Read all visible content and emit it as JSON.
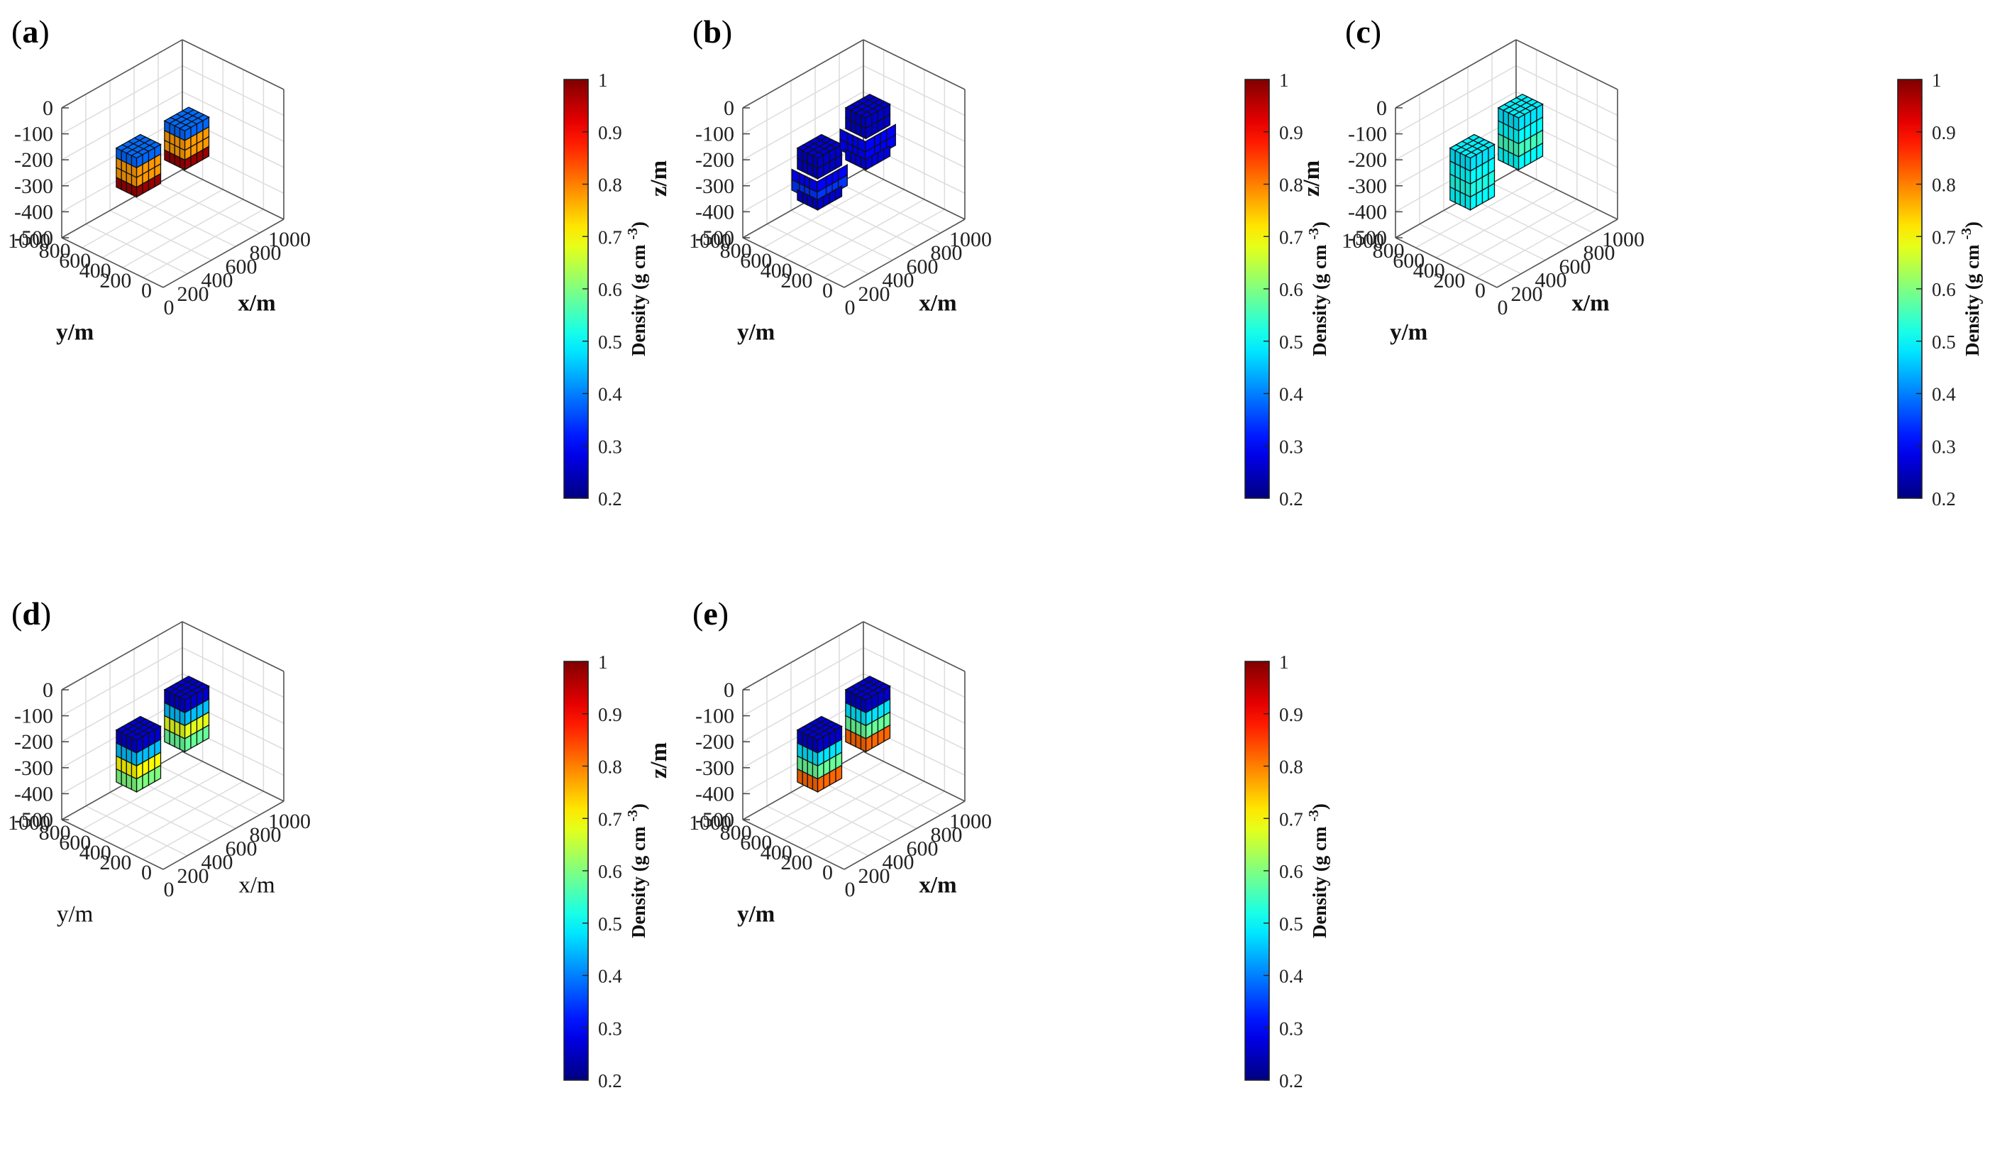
{
  "chart_data": [
    {
      "type": "3d-voxel",
      "panel_label": "a",
      "xlabel": "x/m",
      "ylabel": "y/m",
      "zlabel": "z/m",
      "bold_labels": true,
      "xlim": [
        0,
        1000
      ],
      "ylim": [
        0,
        1000
      ],
      "zlim": [
        -500,
        0
      ],
      "xticks": [
        0,
        200,
        400,
        600,
        800,
        1000
      ],
      "yticks": [
        0,
        200,
        400,
        600,
        800,
        1000
      ],
      "zticks": [
        0,
        -100,
        -200,
        -300,
        -400,
        -500
      ],
      "grid": true,
      "colorbar": {
        "label": "Density (g cm",
        "label_superscript": "-3",
        "label_suffix": ")",
        "min": 0.2,
        "max": 1,
        "ticks": [
          0.2,
          0.3,
          0.4,
          0.5,
          0.6,
          0.7,
          0.8,
          0.9,
          1
        ],
        "colormap": "jet"
      },
      "bodies": [
        {
          "x": [
            200,
            400
          ],
          "y": [
            500,
            700
          ],
          "z": [
            -300,
            -150
          ],
          "layers": [
            0.38,
            0.78,
            0.78,
            0.98
          ]
        },
        {
          "x": [
            600,
            800
          ],
          "y": [
            500,
            700
          ],
          "z": [
            -300,
            -150
          ],
          "layers": [
            0.38,
            0.78,
            0.78,
            0.98
          ]
        }
      ]
    },
    {
      "type": "3d-voxel",
      "panel_label": "b",
      "xlabel": "x/m",
      "ylabel": "y/m",
      "zlabel": "z/m",
      "bold_labels": true,
      "xlim": [
        0,
        1000
      ],
      "ylim": [
        0,
        1000
      ],
      "zlim": [
        -500,
        0
      ],
      "xticks": [
        0,
        200,
        400,
        600,
        800,
        1000
      ],
      "yticks": [
        0,
        200,
        400,
        600,
        800,
        1000
      ],
      "zticks": [
        0,
        -100,
        -200,
        -300,
        -400,
        -500
      ],
      "grid": true,
      "colorbar": {
        "label": "Density (g cm",
        "label_superscript": "-3",
        "label_suffix": ")",
        "min": 0.2,
        "max": 1,
        "ticks": [
          0.2,
          0.3,
          0.4,
          0.5,
          0.6,
          0.7,
          0.8,
          0.9,
          1
        ],
        "colormap": "jet"
      },
      "bodies": [
        {
          "x": [
            200,
            400
          ],
          "y": [
            500,
            700
          ],
          "z": [
            -350,
            -150
          ],
          "layers": [
            0.26,
            0.26,
            0.3,
            0.34,
            0.26
          ],
          "irregular": true
        },
        {
          "x": [
            600,
            800
          ],
          "y": [
            500,
            700
          ],
          "z": [
            -300,
            -100
          ],
          "layers": [
            0.26,
            0.26,
            0.3,
            0.3,
            0.28
          ],
          "irregular": true
        }
      ]
    },
    {
      "type": "3d-voxel",
      "panel_label": "c",
      "xlabel": "x/m",
      "ylabel": "y/m",
      "zlabel": "z/m",
      "bold_labels": true,
      "xlim": [
        0,
        1000
      ],
      "ylim": [
        0,
        1000
      ],
      "zlim": [
        -500,
        0
      ],
      "xticks": [
        0,
        200,
        400,
        600,
        800,
        1000
      ],
      "yticks": [
        0,
        200,
        400,
        600,
        800,
        1000
      ],
      "zticks": [
        0,
        -100,
        -200,
        -300,
        -400,
        -500
      ],
      "grid": true,
      "colorbar": {
        "label": "Density (g cm",
        "label_superscript": "-3",
        "label_suffix": ")",
        "min": 0.2,
        "max": 1,
        "ticks": [
          0.2,
          0.3,
          0.4,
          0.5,
          0.6,
          0.7,
          0.8,
          0.9,
          1
        ],
        "colormap": "jet"
      },
      "bodies": [
        {
          "x": [
            200,
            400
          ],
          "y": [
            500,
            700
          ],
          "z": [
            -350,
            -150
          ],
          "layers": [
            0.48,
            0.5,
            0.52,
            0.5
          ]
        },
        {
          "x": [
            600,
            800
          ],
          "y": [
            500,
            700
          ],
          "z": [
            -300,
            -100
          ],
          "layers": [
            0.48,
            0.5,
            0.55,
            0.5
          ]
        }
      ]
    },
    {
      "type": "3d-voxel",
      "panel_label": "d",
      "xlabel": "x/m",
      "ylabel": "y/m",
      "zlabel": "z/m",
      "bold_labels": false,
      "xlim": [
        0,
        1000
      ],
      "ylim": [
        0,
        1000
      ],
      "zlim": [
        -500,
        0
      ],
      "xticks": [
        0,
        200,
        400,
        600,
        800,
        1000
      ],
      "yticks": [
        0,
        200,
        400,
        600,
        800,
        1000
      ],
      "zticks": [
        0,
        -100,
        -200,
        -300,
        -400,
        -500
      ],
      "grid": true,
      "colorbar": {
        "label": "Density (g cm",
        "label_superscript": "-3",
        "label_suffix": ")",
        "min": 0.2,
        "max": 1,
        "ticks": [
          0.2,
          0.3,
          0.4,
          0.5,
          0.6,
          0.7,
          0.8,
          0.9,
          1
        ],
        "colormap": "jet"
      },
      "bodies": [
        {
          "x": [
            200,
            400
          ],
          "y": [
            500,
            700
          ],
          "z": [
            -350,
            -150
          ],
          "layers": [
            0.26,
            0.45,
            0.7,
            0.6
          ]
        },
        {
          "x": [
            600,
            800
          ],
          "y": [
            500,
            700
          ],
          "z": [
            -300,
            -100
          ],
          "layers": [
            0.26,
            0.45,
            0.68,
            0.58
          ]
        }
      ]
    },
    {
      "type": "3d-voxel",
      "panel_label": "e",
      "xlabel": "x/m",
      "ylabel": "y/m",
      "zlabel": "z/m",
      "bold_labels": true,
      "xlim": [
        0,
        1000
      ],
      "ylim": [
        0,
        1000
      ],
      "zlim": [
        -500,
        0
      ],
      "xticks": [
        0,
        200,
        400,
        600,
        800,
        1000
      ],
      "yticks": [
        0,
        200,
        400,
        600,
        800,
        1000
      ],
      "zticks": [
        0,
        -100,
        -200,
        -300,
        -400,
        -500
      ],
      "grid": true,
      "colorbar": {
        "label": "Density (g cm",
        "label_superscript": "-3",
        "label_suffix": ")",
        "min": 0.2,
        "max": 1,
        "ticks": [
          0.2,
          0.3,
          0.4,
          0.5,
          0.6,
          0.7,
          0.8,
          0.9,
          1
        ],
        "colormap": "jet"
      },
      "bodies": [
        {
          "x": [
            200,
            400
          ],
          "y": [
            500,
            700
          ],
          "z": [
            -350,
            -150
          ],
          "layers": [
            0.26,
            0.48,
            0.58,
            0.82
          ]
        },
        {
          "x": [
            600,
            800
          ],
          "y": [
            500,
            700
          ],
          "z": [
            -300,
            -100
          ],
          "layers": [
            0.26,
            0.48,
            0.58,
            0.82
          ]
        }
      ]
    }
  ]
}
